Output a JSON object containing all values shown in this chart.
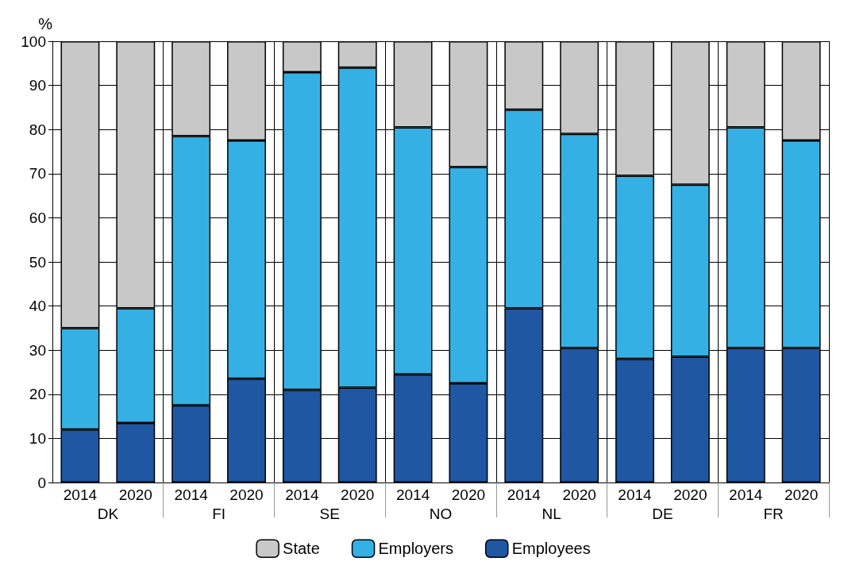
{
  "chart_data": {
    "type": "bar",
    "stacked": true,
    "ylabel": "%",
    "categories": [
      "2014",
      "2020",
      "2014",
      "2020",
      "2014",
      "2020",
      "2014",
      "2020",
      "2014",
      "2020",
      "2014",
      "2020",
      "2014",
      "2020"
    ],
    "annotations": [
      "DK",
      "FI",
      "SE",
      "NO",
      "NL",
      "DE",
      "FR"
    ],
    "series": [
      {
        "name": "Employees",
        "color": "#1f57a3",
        "values": [
          12,
          13.5,
          17.5,
          23.5,
          21,
          21.5,
          24.5,
          22.5,
          39.5,
          30.5,
          28,
          28.5,
          30.5,
          30.5
        ]
      },
      {
        "name": "Employers",
        "color": "#35b0e4",
        "values": [
          23,
          26,
          61,
          54,
          72,
          72.5,
          56,
          49,
          45,
          48.5,
          41.5,
          39,
          50,
          47
        ]
      },
      {
        "name": "State",
        "color": "#c8c8c8",
        "values": [
          65,
          60.5,
          21.5,
          22.5,
          7,
          6,
          19.5,
          28.5,
          15.5,
          21,
          30.5,
          32.5,
          19.5,
          22.5
        ]
      }
    ],
    "ylim": [
      0,
      100
    ],
    "yticks": [
      0,
      10,
      20,
      30,
      40,
      50,
      60,
      70,
      80,
      90,
      100
    ],
    "grid": true,
    "legend": "bottom"
  }
}
